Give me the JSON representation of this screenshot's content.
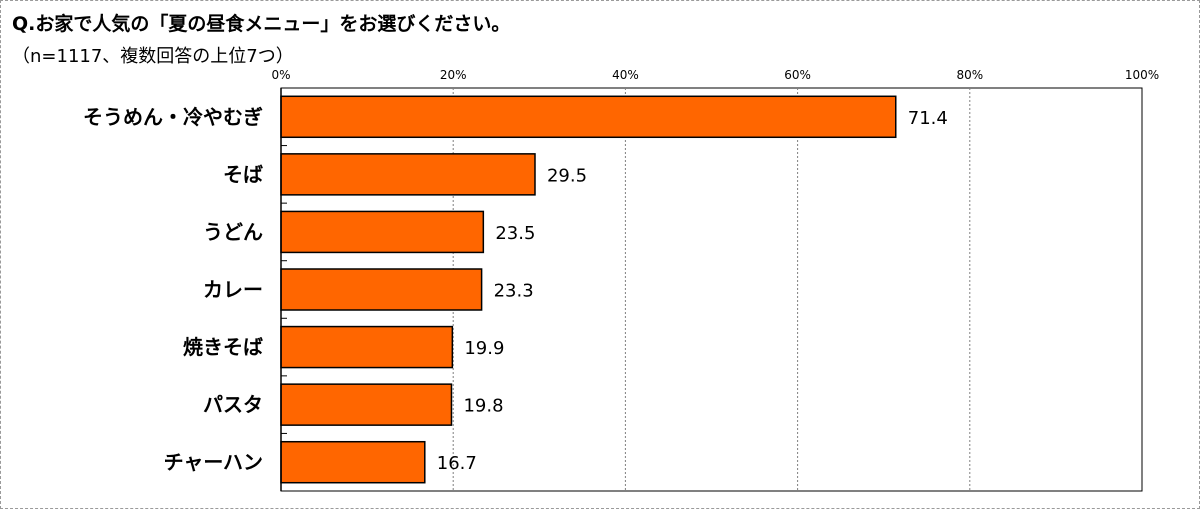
{
  "chart_data": {
    "type": "bar",
    "orientation": "horizontal",
    "title": "Q.お家で人気の「夏の昼食メニュー」をお選びください。",
    "subtitle": "（n=1117、複数回答の上位7つ）",
    "categories": [
      "そうめん・冷やむぎ",
      "そば",
      "うどん",
      "カレー",
      "焼きそば",
      "パスタ",
      "チャーハン"
    ],
    "values": [
      71.4,
      29.5,
      23.5,
      23.3,
      19.9,
      19.8,
      16.7
    ],
    "value_labels": [
      "71.4",
      "29.5",
      "23.5",
      "23.3",
      "19.9",
      "19.8",
      "16.7"
    ],
    "xlim": [
      0,
      100
    ],
    "xticks": [
      0,
      20,
      40,
      60,
      80,
      100
    ],
    "xtick_labels": [
      "0%",
      "20%",
      "40%",
      "60%",
      "80%",
      "100%"
    ],
    "grid": true,
    "legend": "none",
    "bar_color": "#ff6600",
    "bar_edge_color": "#000000"
  }
}
